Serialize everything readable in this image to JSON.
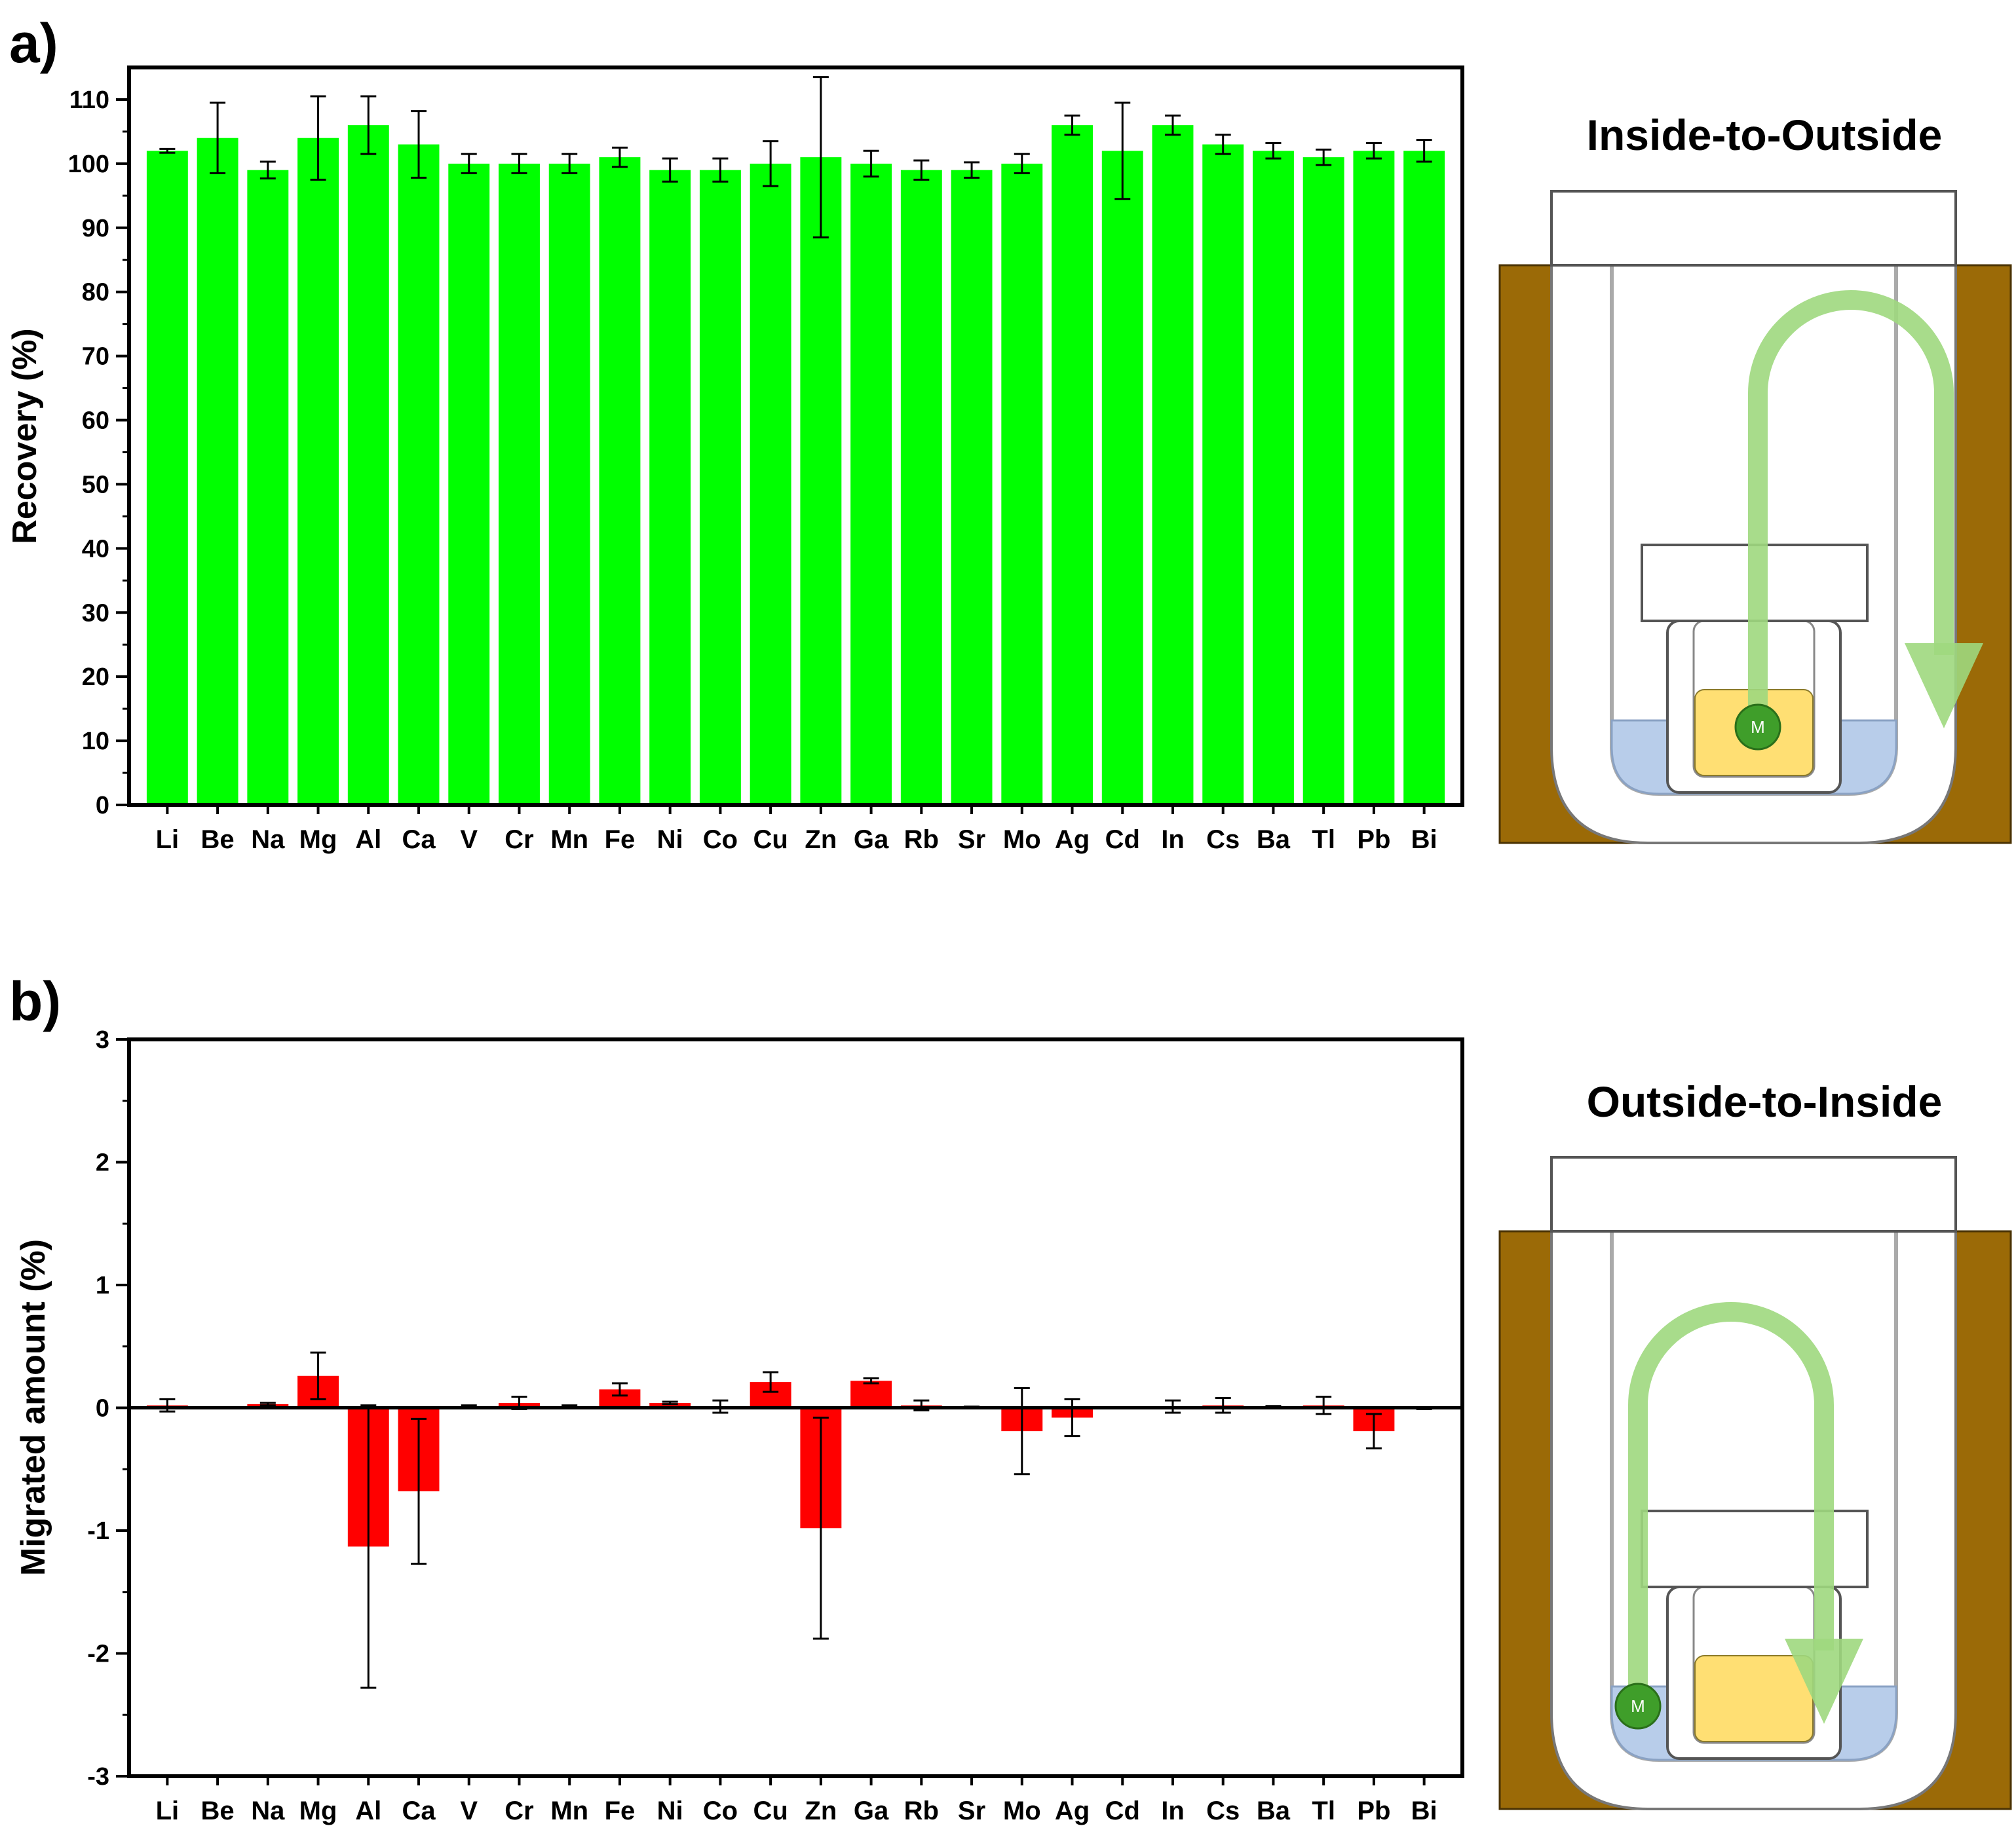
{
  "panels": {
    "a_label": "a)",
    "b_label": "b)"
  },
  "diagrams": {
    "top_title": "Inside-to-Outside",
    "bottom_title": "Outside-to-Inside",
    "marker_label": "M",
    "colors": {
      "wood": "#9b6a07",
      "liquid_outer": "#b8cdea",
      "liquid_inner": "#ffdf73",
      "arrow": "#9fd87e",
      "marker": "#3f9e2a"
    }
  },
  "chart_data": [
    {
      "type": "bar",
      "xlabel": "",
      "ylabel": "Recovery (%)",
      "ylim": [
        0,
        115
      ],
      "yticks": [
        0,
        10,
        20,
        30,
        40,
        50,
        60,
        70,
        80,
        90,
        100,
        110
      ],
      "bar_color": "#00ff00",
      "categories": [
        "Li",
        "Be",
        "Na",
        "Mg",
        "Al",
        "Ca",
        "V",
        "Cr",
        "Mn",
        "Fe",
        "Ni",
        "Co",
        "Cu",
        "Zn",
        "Ga",
        "Rb",
        "Sr",
        "Mo",
        "Ag",
        "Cd",
        "In",
        "Cs",
        "Ba",
        "Tl",
        "Pb",
        "Bi"
      ],
      "values": [
        102,
        104,
        99,
        104,
        106,
        103,
        100,
        100,
        100,
        101,
        99,
        99,
        100,
        101,
        100,
        99,
        99,
        100,
        106,
        102,
        106,
        103,
        102,
        101,
        102,
        102
      ],
      "errors": [
        0.3,
        5.5,
        1.3,
        6.5,
        4.5,
        5.2,
        1.5,
        1.5,
        1.5,
        1.5,
        1.8,
        1.8,
        3.5,
        12.5,
        2.0,
        1.5,
        1.2,
        1.5,
        1.5,
        7.5,
        1.5,
        1.5,
        1.2,
        1.2,
        1.2,
        1.7
      ],
      "grid": false
    },
    {
      "type": "bar",
      "xlabel": "",
      "ylabel": "Migrated amount (%)",
      "ylim": [
        -3,
        3
      ],
      "yticks": [
        -3,
        -2,
        -1,
        0,
        1,
        2,
        3
      ],
      "bar_color": "#ff0000",
      "categories": [
        "Li",
        "Be",
        "Na",
        "Mg",
        "Al",
        "Ca",
        "V",
        "Cr",
        "Mn",
        "Fe",
        "Ni",
        "Co",
        "Cu",
        "Zn",
        "Ga",
        "Rb",
        "Sr",
        "Mo",
        "Ag",
        "Cd",
        "In",
        "Cs",
        "Ba",
        "Tl",
        "Pb",
        "Bi"
      ],
      "values": [
        0.02,
        0,
        0.03,
        0.26,
        -1.13,
        -0.68,
        0.01,
        0.04,
        0.01,
        0.15,
        0.04,
        0.01,
        0.21,
        -0.98,
        0.22,
        0.02,
        0.005,
        -0.19,
        -0.08,
        0,
        0.01,
        0.02,
        0.005,
        0.02,
        -0.19,
        -0.005
      ],
      "errors": [
        0.05,
        0,
        0.01,
        0.19,
        1.15,
        0.59,
        0.01,
        0.05,
        0.01,
        0.05,
        0.01,
        0.05,
        0.08,
        0.9,
        0.02,
        0.04,
        0.005,
        0.35,
        0.15,
        0,
        0.05,
        0.06,
        0.01,
        0.07,
        0.14,
        0.005
      ],
      "grid": false
    }
  ]
}
